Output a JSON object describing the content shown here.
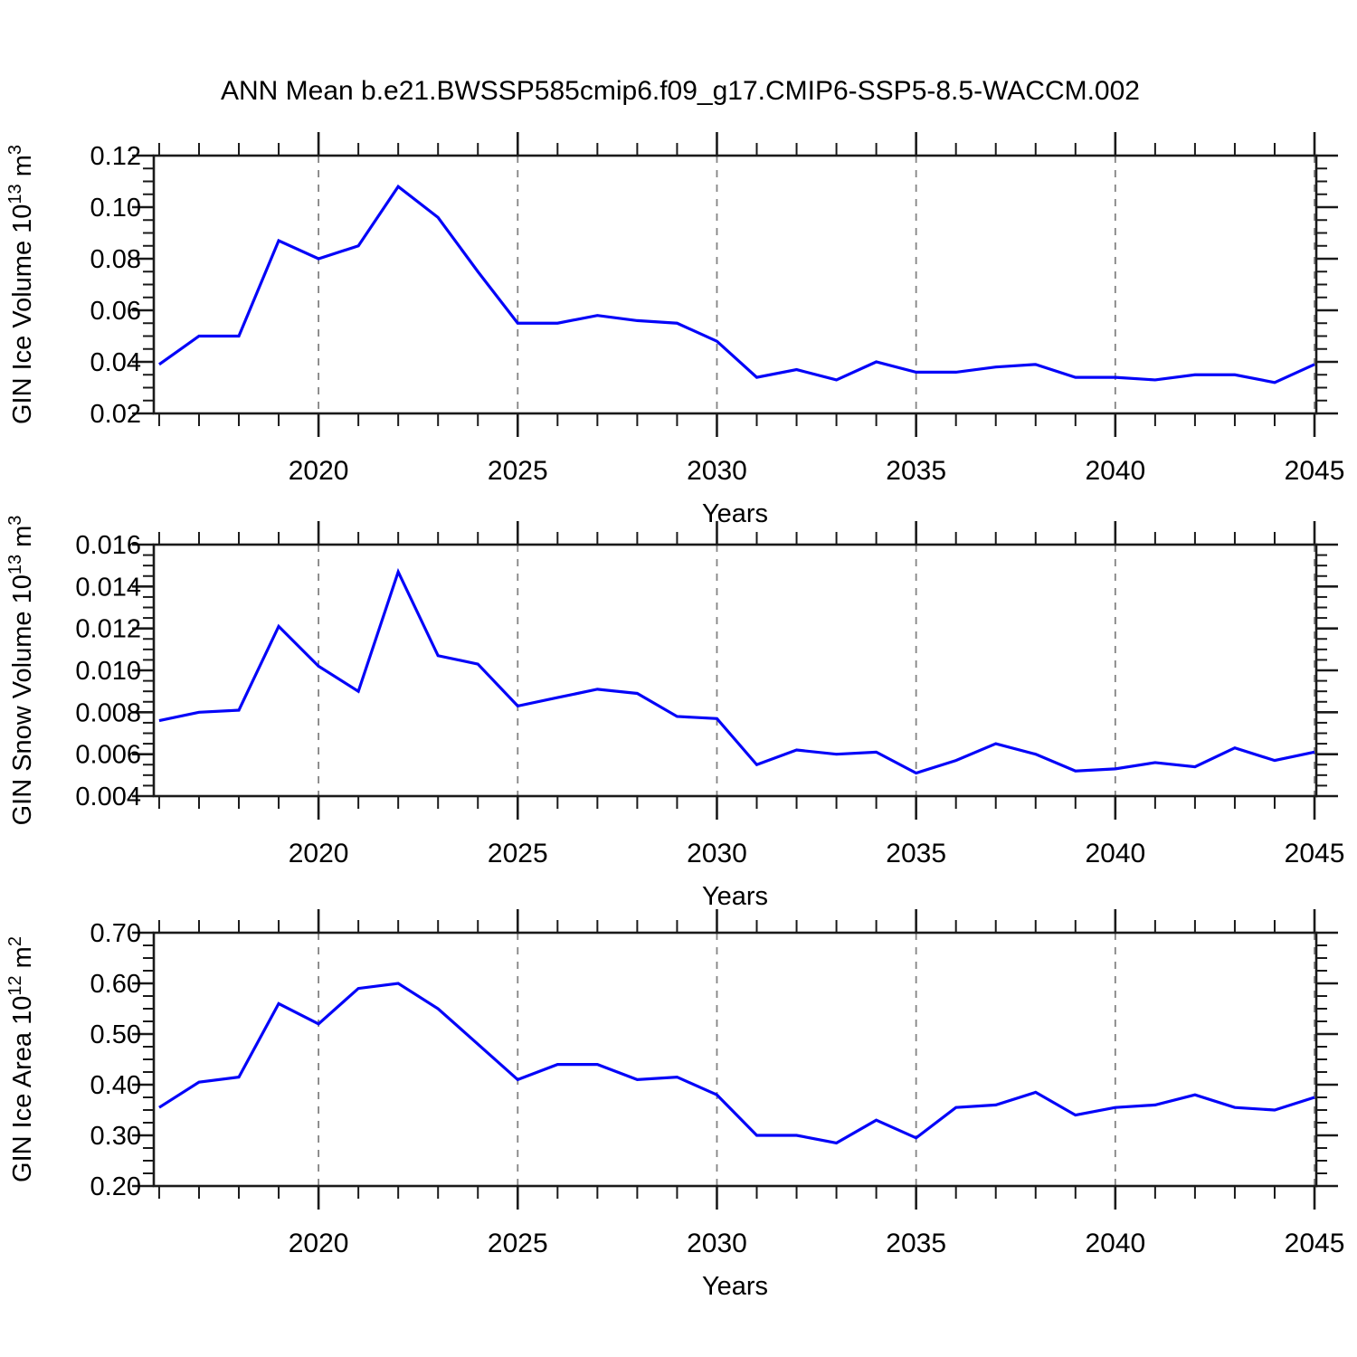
{
  "title": "ANN Mean b.e21.BWSSP585cmip6.f09_g17.CMIP6-SSP5-8.5-WACCM.002",
  "colors": {
    "line": "#0404f8",
    "grid": "#848484",
    "frame": "#1a1a1a",
    "background": "#ffffff",
    "text": "#000000"
  },
  "x_axis": {
    "label": "Years",
    "major_ticks": [
      2020,
      2025,
      2030,
      2035,
      2040,
      2045
    ],
    "major_tick_labels": [
      "2020",
      "2025",
      "2030",
      "2035",
      "2040",
      "2045"
    ],
    "minor_tick_step_years": 1,
    "range": [
      2015.865,
      2045.045
    ],
    "gridlines_at": [
      2020,
      2025,
      2030,
      2035,
      2040,
      2045
    ],
    "gridline_style": "dashed"
  },
  "chart_data": [
    {
      "name": "ice-volume",
      "type": "line",
      "ylabel": "GIN Ice Volume 10^13 m^3",
      "xlabel": "Years",
      "ylim": [
        0.02,
        0.12
      ],
      "yticks": [
        0.02,
        0.04,
        0.06,
        0.08,
        0.1,
        0.12
      ],
      "ytick_labels": [
        "0.02",
        "0.04",
        "0.06",
        "0.08",
        "0.10",
        "0.12"
      ],
      "yminor_step": 0.005,
      "x": [
        2016,
        2017,
        2018,
        2019,
        2020,
        2021,
        2022,
        2023,
        2024,
        2025,
        2026,
        2027,
        2028,
        2029,
        2030,
        2031,
        2032,
        2033,
        2034,
        2035,
        2036,
        2037,
        2038,
        2039,
        2040,
        2041,
        2042,
        2043,
        2044,
        2045
      ],
      "values": [
        0.039,
        0.05,
        0.05,
        0.087,
        0.08,
        0.085,
        0.108,
        0.096,
        0.075,
        0.055,
        0.055,
        0.058,
        0.056,
        0.055,
        0.048,
        0.034,
        0.037,
        0.033,
        0.04,
        0.036,
        0.036,
        0.038,
        0.039,
        0.034,
        0.034,
        0.033,
        0.035,
        0.035,
        0.032,
        0.039
      ]
    },
    {
      "name": "snow-volume",
      "type": "line",
      "ylabel": "GIN Snow Volume 10^13 m^3",
      "xlabel": "Years",
      "ylim": [
        0.004,
        0.016
      ],
      "yticks": [
        0.004,
        0.006,
        0.008,
        0.01,
        0.012,
        0.014,
        0.016
      ],
      "ytick_labels": [
        "0.004",
        "0.006",
        "0.008",
        "0.010",
        "0.012",
        "0.014",
        "0.016"
      ],
      "yminor_step": 0.0005,
      "x": [
        2016,
        2017,
        2018,
        2019,
        2020,
        2021,
        2022,
        2023,
        2024,
        2025,
        2026,
        2027,
        2028,
        2029,
        2030,
        2031,
        2032,
        2033,
        2034,
        2035,
        2036,
        2037,
        2038,
        2039,
        2040,
        2041,
        2042,
        2043,
        2044,
        2045
      ],
      "values": [
        0.0076,
        0.008,
        0.0081,
        0.0121,
        0.0102,
        0.009,
        0.0147,
        0.0107,
        0.0103,
        0.0083,
        0.0087,
        0.0091,
        0.0089,
        0.0078,
        0.0077,
        0.0055,
        0.0062,
        0.006,
        0.0061,
        0.0051,
        0.0057,
        0.0065,
        0.006,
        0.0052,
        0.0053,
        0.0056,
        0.0054,
        0.0063,
        0.0057,
        0.0061
      ]
    },
    {
      "name": "ice-area",
      "type": "line",
      "ylabel": "GIN Ice Area 10^12 m^2",
      "xlabel": "Years",
      "ylim": [
        0.2,
        0.7
      ],
      "yticks": [
        0.2,
        0.3,
        0.4,
        0.5,
        0.6,
        0.7
      ],
      "ytick_labels": [
        "0.20",
        "0.30",
        "0.40",
        "0.50",
        "0.60",
        "0.70"
      ],
      "yminor_step": 0.025,
      "x": [
        2016,
        2017,
        2018,
        2019,
        2020,
        2021,
        2022,
        2023,
        2024,
        2025,
        2026,
        2027,
        2028,
        2029,
        2030,
        2031,
        2032,
        2033,
        2034,
        2035,
        2036,
        2037,
        2038,
        2039,
        2040,
        2041,
        2042,
        2043,
        2044,
        2045
      ],
      "values": [
        0.355,
        0.405,
        0.415,
        0.56,
        0.52,
        0.59,
        0.6,
        0.55,
        0.48,
        0.41,
        0.44,
        0.44,
        0.41,
        0.415,
        0.38,
        0.3,
        0.3,
        0.285,
        0.33,
        0.295,
        0.355,
        0.36,
        0.385,
        0.34,
        0.355,
        0.36,
        0.38,
        0.355,
        0.35,
        0.375
      ]
    }
  ]
}
